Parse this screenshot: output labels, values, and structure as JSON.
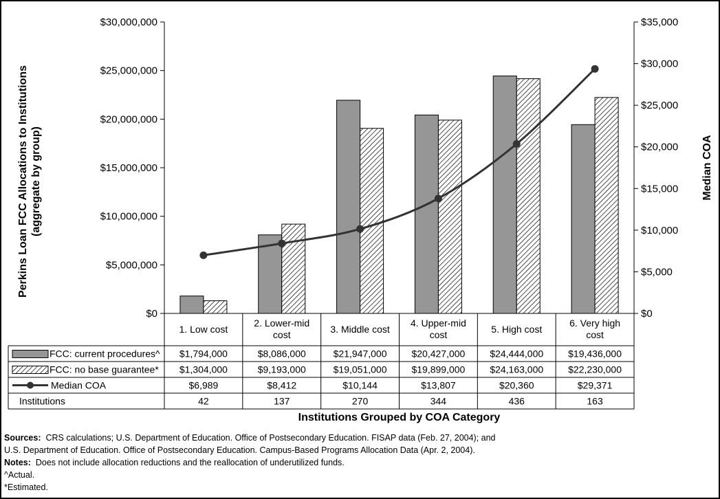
{
  "chart_data": {
    "type": "bar",
    "categories": [
      "1. Low cost",
      "2. Lower-mid cost",
      "3. Middle cost",
      "4. Upper-mid cost",
      "5. High cost",
      "6. Very high cost"
    ],
    "category_lines": [
      [
        "1. Low cost"
      ],
      [
        "2. Lower-mid",
        "cost"
      ],
      [
        "3. Middle cost"
      ],
      [
        "4. Upper-mid",
        "cost"
      ],
      [
        "5. High cost"
      ],
      [
        "6. Very high",
        "cost"
      ]
    ],
    "series": [
      {
        "name": "FCC: current procedures^",
        "kind": "bar",
        "axis": "left",
        "color": "#969696",
        "pattern": "solid",
        "values": [
          1794000,
          8086000,
          21947000,
          20427000,
          24444000,
          19436000
        ],
        "labels": [
          "$1,794,000",
          "$8,086,000",
          "$21,947,000",
          "$20,427,000",
          "$24,444,000",
          "$19,436,000"
        ]
      },
      {
        "name": "FCC: no base guarantee*",
        "kind": "bar",
        "axis": "left",
        "color": "#ffffff",
        "pattern": "hatch",
        "values": [
          1304000,
          9193000,
          19051000,
          19899000,
          24163000,
          22230000
        ],
        "labels": [
          "$1,304,000",
          "$9,193,000",
          "$19,051,000",
          "$19,899,000",
          "$24,163,000",
          "$22,230,000"
        ]
      },
      {
        "name": "Median COA",
        "kind": "line",
        "axis": "right",
        "color": "#333333",
        "values": [
          6989,
          8412,
          10144,
          13807,
          20360,
          29371
        ],
        "labels": [
          "$6,989",
          "$8,412",
          "$10,144",
          "$13,807",
          "$20,360",
          "$29,371"
        ]
      }
    ],
    "table_extra_row": {
      "name": "Institutions",
      "labels": [
        "42",
        "137",
        "270",
        "344",
        "436",
        "163"
      ]
    },
    "y_left": {
      "label_lines": [
        "Perkins Loan FCC Allocations to Institutions",
        "(aggregate by group)"
      ],
      "ylim": [
        0,
        30000000
      ],
      "ticks": [
        "$0",
        "$5,000,000",
        "$10,000,000",
        "$15,000,000",
        "$20,000,000",
        "$25,000,000",
        "$30,000,000"
      ]
    },
    "y_right": {
      "label": "Median COA",
      "ylim": [
        0,
        35000
      ],
      "ticks": [
        "$0",
        "$5,000",
        "$10,000",
        "$15,000",
        "$20,000",
        "$25,000",
        "$30,000",
        "$35,000"
      ]
    },
    "xlabel": "Institutions Grouped by COA Category",
    "grid": false,
    "legend": "data table"
  },
  "notes": {
    "sources_label": "Sources:",
    "sources_text_1": "CRS calculations; U.S. Department of Education.  Office of Postsecondary Education.  FISAP data (Feb. 27, 2004);  and",
    "sources_text_2": "U.S. Department of Education.  Office of Postsecondary Education.  Campus-Based Programs Allocation Data (Apr. 2, 2004).",
    "notes_label": "Notes:",
    "notes_text": "Does not include allocation reductions and the reallocation of underutilized funds.",
    "footnote_actual": "^Actual.",
    "footnote_estimated": "*Estimated."
  }
}
